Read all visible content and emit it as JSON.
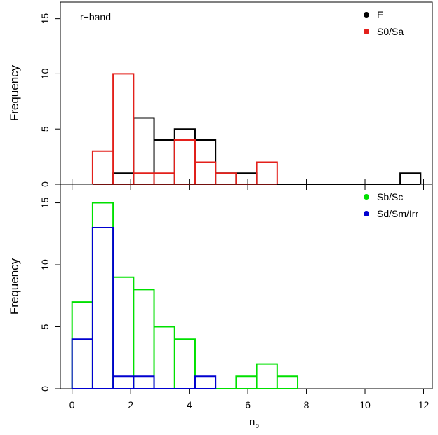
{
  "chart_data": [
    {
      "type": "histogram",
      "annotation": "r−band",
      "ylabel": "Frequency",
      "ylim": [
        0,
        16.5
      ],
      "yticks": [
        0,
        5,
        10,
        15
      ],
      "bin_edges": [
        0,
        0.7,
        1.4,
        2.1,
        2.8,
        3.5,
        4.2,
        4.9,
        5.6,
        6.3,
        7.0,
        7.7,
        8.4,
        9.1,
        9.8,
        10.5,
        11.2,
        11.9
      ],
      "series": [
        {
          "name": "E",
          "color": "#000000",
          "counts": [
            0,
            0,
            1,
            6,
            4,
            5,
            4,
            1,
            1,
            0,
            0,
            0,
            0,
            0,
            0,
            0,
            1
          ]
        },
        {
          "name": "S0/Sa",
          "color": "#e3201b",
          "counts": [
            0,
            3,
            10,
            1,
            1,
            4,
            2,
            1,
            0,
            2,
            0,
            0,
            0,
            0,
            0,
            0,
            0
          ]
        }
      ],
      "legend_position": "top-right"
    },
    {
      "type": "histogram",
      "ylabel": "Frequency",
      "xlabel_main": "n",
      "xlabel_sub": "b",
      "xlim": [
        -0.4,
        12.3
      ],
      "xticks": [
        "0",
        "2",
        "4",
        "6",
        "8",
        "10",
        "12"
      ],
      "ylim": [
        0,
        16.5
      ],
      "yticks": [
        0,
        5,
        10,
        15
      ],
      "bin_edges": [
        0,
        0.7,
        1.4,
        2.1,
        2.8,
        3.5,
        4.2,
        4.9,
        5.6,
        6.3,
        7.0,
        7.7
      ],
      "series": [
        {
          "name": "Sb/Sc",
          "color": "#00e000",
          "counts": [
            7,
            15,
            9,
            8,
            5,
            4,
            0,
            0,
            1,
            2,
            1
          ]
        },
        {
          "name": "Sd/Sm/Irr",
          "color": "#0000d0",
          "counts": [
            4,
            13,
            1,
            1,
            0,
            0,
            1,
            0,
            0,
            0,
            0
          ]
        }
      ],
      "legend_position": "top-right"
    }
  ]
}
